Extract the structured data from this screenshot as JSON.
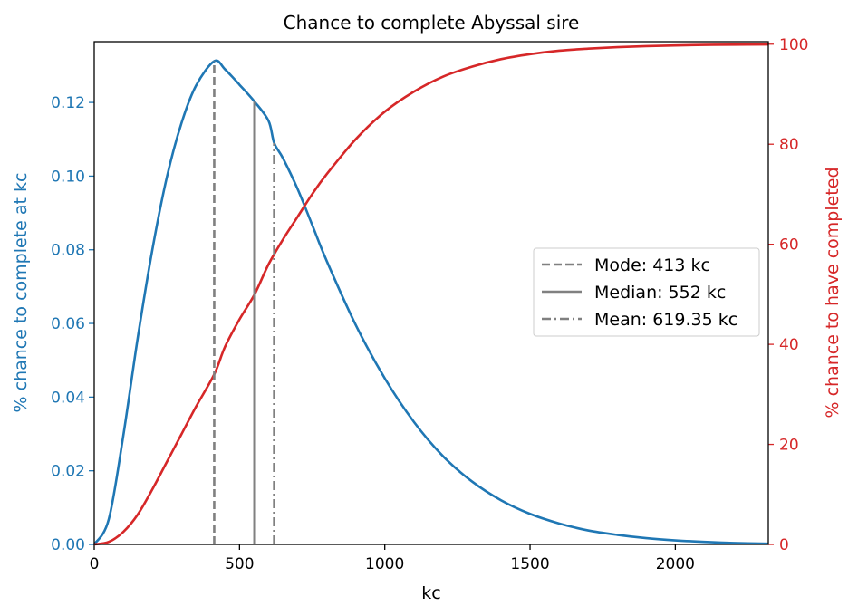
{
  "chart_data": {
    "type": "line",
    "title": "Chance to complete Abyssal sire",
    "xlabel": "kc",
    "ylabel_left": "% chance to complete at kc",
    "ylabel_right": "% chance to have completed",
    "xlim": [
      0,
      2320
    ],
    "ylim_left": [
      0,
      0.1365
    ],
    "ylim_right": [
      0,
      100.5
    ],
    "x_ticks": [
      0,
      500,
      1000,
      1500,
      2000
    ],
    "y_ticks_left": [
      "0.00",
      "0.02",
      "0.04",
      "0.06",
      "0.08",
      "0.10",
      "0.12"
    ],
    "y_ticks_right": [
      0,
      20,
      40,
      60,
      80,
      100
    ],
    "colors": {
      "left_axis": "#1f77b4",
      "right_axis": "#d62728",
      "markers": "#808080"
    },
    "legend": {
      "placement": "center-right",
      "entries": [
        {
          "label": "Mode: 413 kc",
          "style": "dashed",
          "x": 413
        },
        {
          "label": "Median: 552 kc",
          "style": "solid",
          "x": 552
        },
        {
          "label": "Mean: 619.35 kc",
          "style": "dashdot",
          "x": 619.35
        }
      ]
    },
    "series": [
      {
        "axis": "left",
        "color": "#1f77b4",
        "x": [
          0,
          50,
          100,
          150,
          200,
          250,
          300,
          350,
          413,
          450,
          500,
          552,
          600,
          619.35,
          650,
          700,
          750,
          800,
          900,
          1000,
          1100,
          1200,
          1300,
          1400,
          1500,
          1600,
          1700,
          1800,
          1900,
          2000,
          2100,
          2200,
          2320
        ],
        "values": [
          0,
          0.0068,
          0.0295,
          0.0562,
          0.08,
          0.0997,
          0.1143,
          0.1245,
          0.1312,
          0.129,
          0.1248,
          0.1202,
          0.115,
          0.109,
          0.1048,
          0.0965,
          0.0868,
          0.077,
          0.0596,
          0.0451,
          0.0333,
          0.024,
          0.0171,
          0.012,
          0.0083,
          0.0057,
          0.0038,
          0.0026,
          0.0017,
          0.0011,
          0.0007,
          0.0004,
          0.0002
        ]
      },
      {
        "axis": "right",
        "color": "#d62728",
        "x": [
          0,
          50,
          100,
          150,
          200,
          250,
          300,
          350,
          413,
          450,
          500,
          552,
          600,
          650,
          700,
          750,
          800,
          900,
          1000,
          1100,
          1200,
          1300,
          1400,
          1500,
          1600,
          1700,
          1800,
          1900,
          2000,
          2100,
          2200,
          2320
        ],
        "values": [
          0,
          0.5,
          2.5,
          6.0,
          11.0,
          16.5,
          22.0,
          27.5,
          34.0,
          39.5,
          45.0,
          50.0,
          56.0,
          61.0,
          65.5,
          70.0,
          74.0,
          81.0,
          86.5,
          90.5,
          93.5,
          95.5,
          97.0,
          98.0,
          98.7,
          99.1,
          99.4,
          99.6,
          99.75,
          99.85,
          99.9,
          99.95
        ]
      }
    ]
  }
}
